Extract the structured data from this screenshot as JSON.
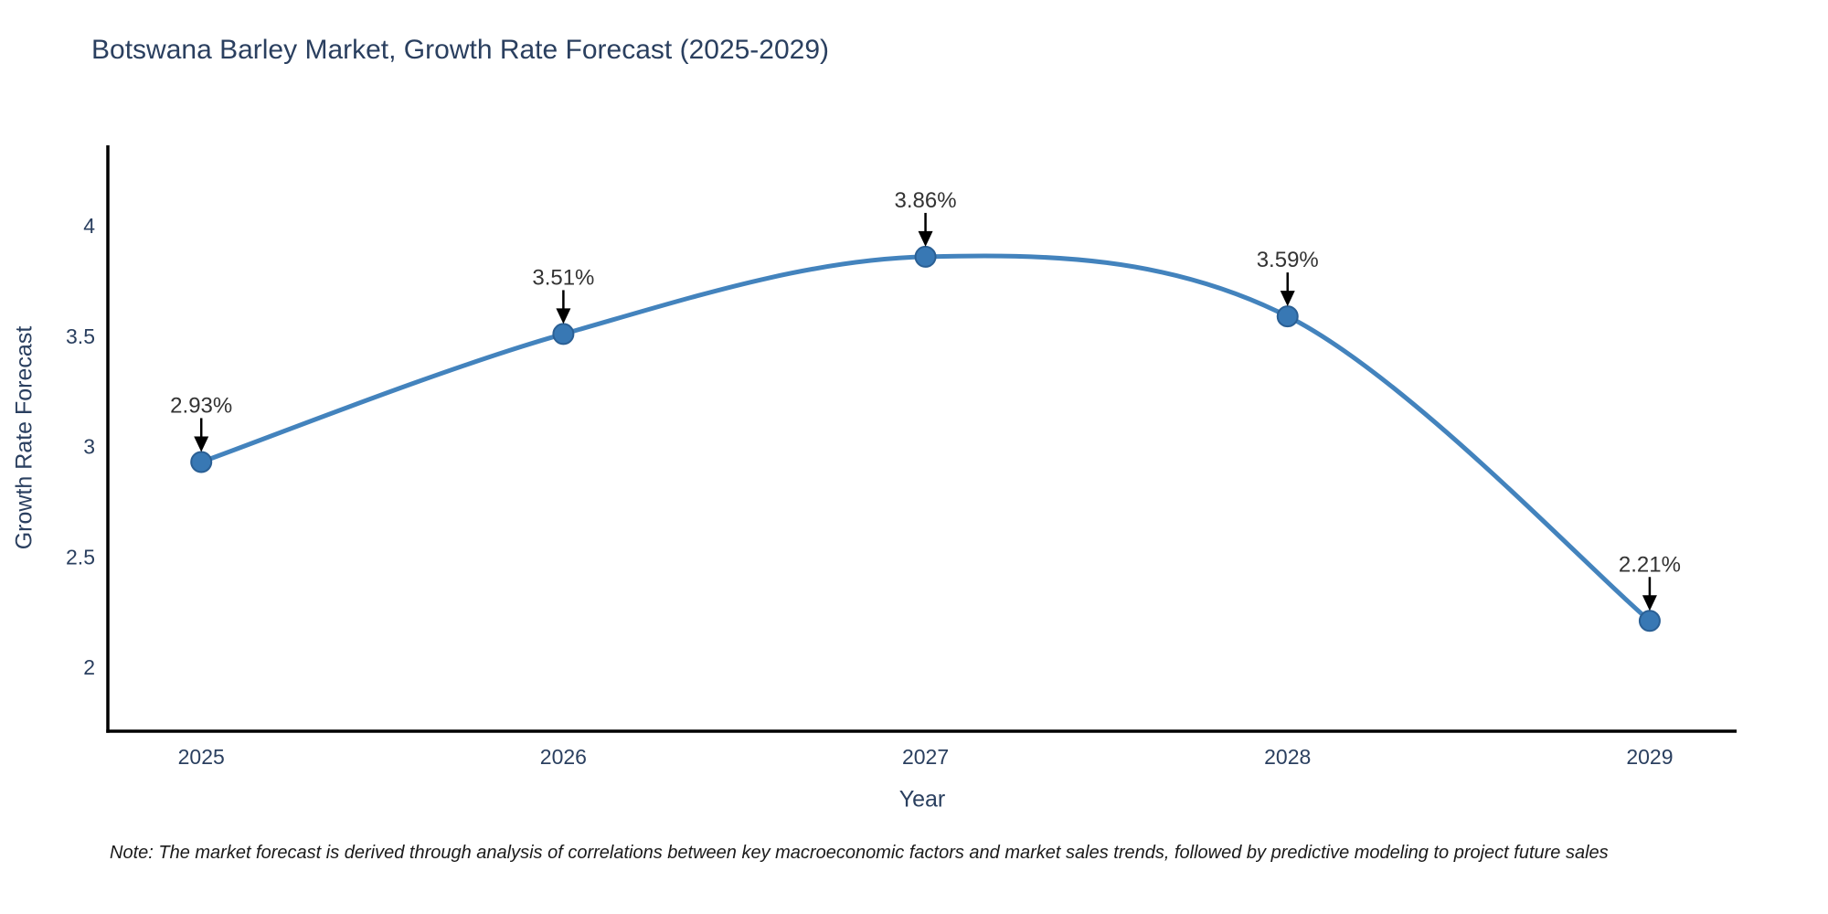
{
  "note": "Note: The market forecast is derived through analysis of correlations between key macroeconomic factors and market sales trends, followed by predictive modeling to project future sales",
  "chart_data": {
    "type": "line",
    "title": "Botswana Barley Market, Growth Rate Forecast (2025-2029)",
    "xlabel": "Year",
    "ylabel": "Growth Rate Forecast",
    "x": [
      2025,
      2026,
      2027,
      2028,
      2029
    ],
    "values": [
      2.93,
      3.51,
      3.86,
      3.59,
      2.21
    ],
    "point_labels": [
      "2.93%",
      "3.51%",
      "3.86%",
      "3.59%",
      "2.21%"
    ],
    "xticks": [
      "2025",
      "2026",
      "2027",
      "2028",
      "2029"
    ],
    "yticks": [
      "4",
      "3.5",
      "3",
      "2.5",
      "2"
    ],
    "ytick_values": [
      4,
      3.5,
      3,
      2.5,
      2
    ],
    "xlim": [
      2024.742,
      2029.24
    ],
    "ylim": [
      1.71,
      4.365
    ],
    "grid": false,
    "legend": "none",
    "line_shape": "spline",
    "colors": {
      "line": "#4383bd",
      "marker_fill": "#3878b4",
      "marker_edge": "#2a5f94",
      "axis": "#000000",
      "tick_text": "#2a3f5f",
      "annotation_text": "#333333",
      "arrow": "#000000",
      "title_text": "#2a3f5f",
      "note_text": "#1a1a1a",
      "background": "#ffffff"
    }
  }
}
